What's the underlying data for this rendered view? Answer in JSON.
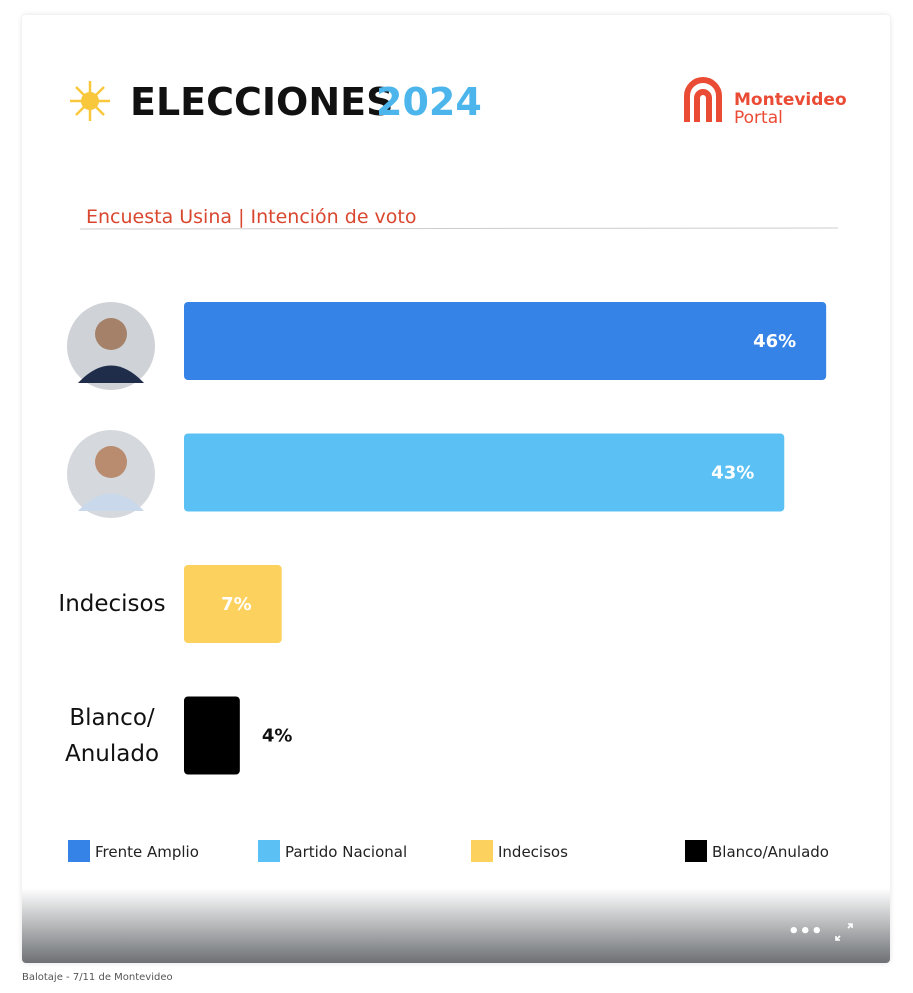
{
  "header": {
    "title": "ELECCIONES",
    "year": "2024",
    "logo_line1": "Montevideo",
    "logo_line2": "Portal"
  },
  "chart_data": {
    "type": "bar",
    "orientation": "horizontal",
    "subtitle": "Encuesta Usina | Intención de voto",
    "categories": [
      null,
      null,
      "Indecisos",
      "Blanco/ Anulado"
    ],
    "series": [
      {
        "name": "Frente Amplio",
        "color": "#3583e6",
        "values": [
          46,
          null,
          null,
          null
        ],
        "value_labels": [
          "46%",
          null,
          null,
          null
        ]
      },
      {
        "name": "Partido Nacional",
        "color": "#5bc1f4",
        "values": [
          null,
          43,
          null,
          null
        ],
        "value_labels": [
          null,
          "43%",
          null,
          null
        ]
      },
      {
        "name": "Indecisos",
        "color": "#fdd15e",
        "values": [
          null,
          null,
          7,
          null
        ],
        "value_labels": [
          null,
          null,
          "7%",
          null
        ]
      },
      {
        "name": "Blanco/Anulado",
        "color": "#000000",
        "values": [
          null,
          null,
          null,
          4
        ],
        "value_labels": [
          null,
          null,
          null,
          "4%"
        ]
      }
    ]
  },
  "caption": "Balotaje - 7/11 de Montevideo"
}
